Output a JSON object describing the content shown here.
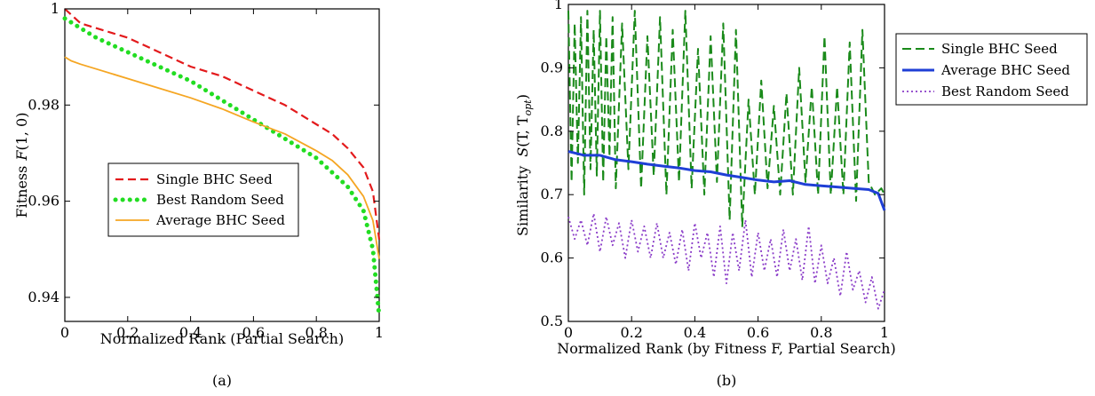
{
  "chart_data": [
    {
      "type": "line",
      "caption": "(a)",
      "xlabel": "Normalized Rank (Partial Search)",
      "ylabel_prefix": "Fitness",
      "ylabel_func": "F",
      "ylabel_args": "(1, 0)",
      "xlim": [
        0,
        1
      ],
      "ylim": [
        0.935,
        1.0
      ],
      "xticks": [
        0,
        0.2,
        0.4,
        0.6,
        0.8,
        1
      ],
      "xtick_labels": [
        "0",
        "0.2",
        "0.4",
        "0.6",
        "0.8",
        "1"
      ],
      "yticks": [
        0.94,
        0.96,
        0.98,
        1.0
      ],
      "ytick_labels": [
        "0.94",
        "0.96",
        "0.98",
        "1"
      ],
      "legend_position": "center-right",
      "series": [
        {
          "name": "Single BHC Seed",
          "color": "#e31a1c",
          "style": "dashed",
          "x": [
            0,
            0.05,
            0.1,
            0.2,
            0.3,
            0.4,
            0.5,
            0.6,
            0.7,
            0.8,
            0.85,
            0.9,
            0.95,
            0.98,
            1.0
          ],
          "y": [
            1.0,
            0.997,
            0.996,
            0.994,
            0.991,
            0.988,
            0.986,
            0.983,
            0.98,
            0.976,
            0.974,
            0.971,
            0.967,
            0.962,
            0.952
          ]
        },
        {
          "name": "Best Random Seed",
          "color": "#22dd22",
          "style": "dotted",
          "x": [
            0,
            0.05,
            0.1,
            0.2,
            0.3,
            0.4,
            0.5,
            0.6,
            0.7,
            0.8,
            0.85,
            0.9,
            0.95,
            0.98,
            1.0
          ],
          "y": [
            0.998,
            0.996,
            0.994,
            0.991,
            0.988,
            0.985,
            0.981,
            0.977,
            0.973,
            0.969,
            0.966,
            0.963,
            0.958,
            0.95,
            0.936
          ]
        },
        {
          "name": "Average BHC Seed",
          "color": "#f5a623",
          "style": "solid",
          "x": [
            0,
            0.02,
            0.05,
            0.1,
            0.2,
            0.3,
            0.4,
            0.5,
            0.6,
            0.7,
            0.8,
            0.85,
            0.9,
            0.95,
            0.98,
            1.0
          ],
          "y": [
            0.99,
            0.9892,
            0.9885,
            0.9875,
            0.9855,
            0.9835,
            0.9815,
            0.9792,
            0.9765,
            0.974,
            0.9705,
            0.9685,
            0.9655,
            0.961,
            0.956,
            0.948
          ]
        }
      ]
    },
    {
      "type": "line",
      "caption": "(b)",
      "xlabel": "Normalized Rank (by Fitness F, Partial Search)",
      "ylabel_prefix": "Similarity",
      "ylabel_func": "S",
      "ylabel_args": "(T, T",
      "ylabel_sub": "opt",
      "ylabel_close": ")",
      "xlim": [
        0,
        1
      ],
      "ylim": [
        0.5,
        1.0
      ],
      "xticks": [
        0,
        0.2,
        0.4,
        0.6,
        0.8,
        1
      ],
      "xtick_labels": [
        "0",
        "0.2",
        "0.4",
        "0.6",
        "0.8",
        "1"
      ],
      "yticks": [
        0.5,
        0.6,
        0.7,
        0.8,
        0.9,
        1.0
      ],
      "ytick_labels": [
        "0.5",
        "0.6",
        "0.7",
        "0.8",
        "0.9",
        "1"
      ],
      "legend_position": "outside-right",
      "series": [
        {
          "name": "Single BHC Seed",
          "color": "#1a8a1a",
          "style": "dashed",
          "x": [
            0,
            0.01,
            0.02,
            0.03,
            0.04,
            0.05,
            0.06,
            0.07,
            0.08,
            0.09,
            0.1,
            0.11,
            0.12,
            0.13,
            0.14,
            0.15,
            0.17,
            0.19,
            0.21,
            0.23,
            0.25,
            0.27,
            0.29,
            0.31,
            0.33,
            0.35,
            0.37,
            0.39,
            0.41,
            0.43,
            0.45,
            0.47,
            0.49,
            0.51,
            0.53,
            0.55,
            0.57,
            0.59,
            0.61,
            0.63,
            0.65,
            0.67,
            0.69,
            0.71,
            0.73,
            0.75,
            0.77,
            0.79,
            0.81,
            0.83,
            0.85,
            0.87,
            0.89,
            0.91,
            0.93,
            0.95,
            0.97,
            0.99,
            1.0
          ],
          "y": [
            0.99,
            0.72,
            0.97,
            0.75,
            0.98,
            0.7,
            0.99,
            0.74,
            0.96,
            0.73,
            0.99,
            0.72,
            0.95,
            0.76,
            0.98,
            0.71,
            0.97,
            0.74,
            0.99,
            0.71,
            0.95,
            0.73,
            0.98,
            0.7,
            0.96,
            0.72,
            0.99,
            0.71,
            0.93,
            0.7,
            0.95,
            0.72,
            0.97,
            0.66,
            0.96,
            0.65,
            0.85,
            0.7,
            0.88,
            0.71,
            0.84,
            0.7,
            0.86,
            0.7,
            0.9,
            0.72,
            0.87,
            0.7,
            0.95,
            0.7,
            0.87,
            0.7,
            0.94,
            0.69,
            0.96,
            0.72,
            0.7,
            0.71,
            0.7
          ]
        },
        {
          "name": "Average BHC Seed",
          "color": "#1f3fd6",
          "style": "solid",
          "x": [
            0,
            0.05,
            0.1,
            0.15,
            0.2,
            0.25,
            0.3,
            0.35,
            0.4,
            0.45,
            0.5,
            0.55,
            0.6,
            0.65,
            0.7,
            0.75,
            0.8,
            0.85,
            0.9,
            0.95,
            0.98,
            1.0
          ],
          "y": [
            0.768,
            0.762,
            0.762,
            0.755,
            0.752,
            0.748,
            0.745,
            0.742,
            0.738,
            0.736,
            0.731,
            0.727,
            0.723,
            0.72,
            0.722,
            0.716,
            0.714,
            0.712,
            0.71,
            0.708,
            0.702,
            0.675
          ]
        },
        {
          "name": "Best Random Seed",
          "color": "#8a3cc8",
          "style": "dotted",
          "x": [
            0,
            0.02,
            0.04,
            0.06,
            0.08,
            0.1,
            0.12,
            0.14,
            0.16,
            0.18,
            0.2,
            0.22,
            0.24,
            0.26,
            0.28,
            0.3,
            0.32,
            0.34,
            0.36,
            0.38,
            0.4,
            0.42,
            0.44,
            0.46,
            0.48,
            0.5,
            0.52,
            0.54,
            0.56,
            0.58,
            0.6,
            0.62,
            0.64,
            0.66,
            0.68,
            0.7,
            0.72,
            0.74,
            0.76,
            0.78,
            0.8,
            0.82,
            0.84,
            0.86,
            0.88,
            0.9,
            0.92,
            0.94,
            0.96,
            0.98,
            1.0
          ],
          "y": [
            0.665,
            0.63,
            0.66,
            0.62,
            0.67,
            0.61,
            0.665,
            0.62,
            0.655,
            0.6,
            0.66,
            0.61,
            0.65,
            0.6,
            0.655,
            0.6,
            0.64,
            0.59,
            0.645,
            0.58,
            0.655,
            0.6,
            0.64,
            0.57,
            0.65,
            0.56,
            0.64,
            0.58,
            0.66,
            0.57,
            0.64,
            0.58,
            0.63,
            0.57,
            0.645,
            0.58,
            0.63,
            0.565,
            0.65,
            0.56,
            0.62,
            0.56,
            0.6,
            0.54,
            0.61,
            0.55,
            0.58,
            0.53,
            0.57,
            0.52,
            0.55
          ]
        }
      ]
    }
  ]
}
